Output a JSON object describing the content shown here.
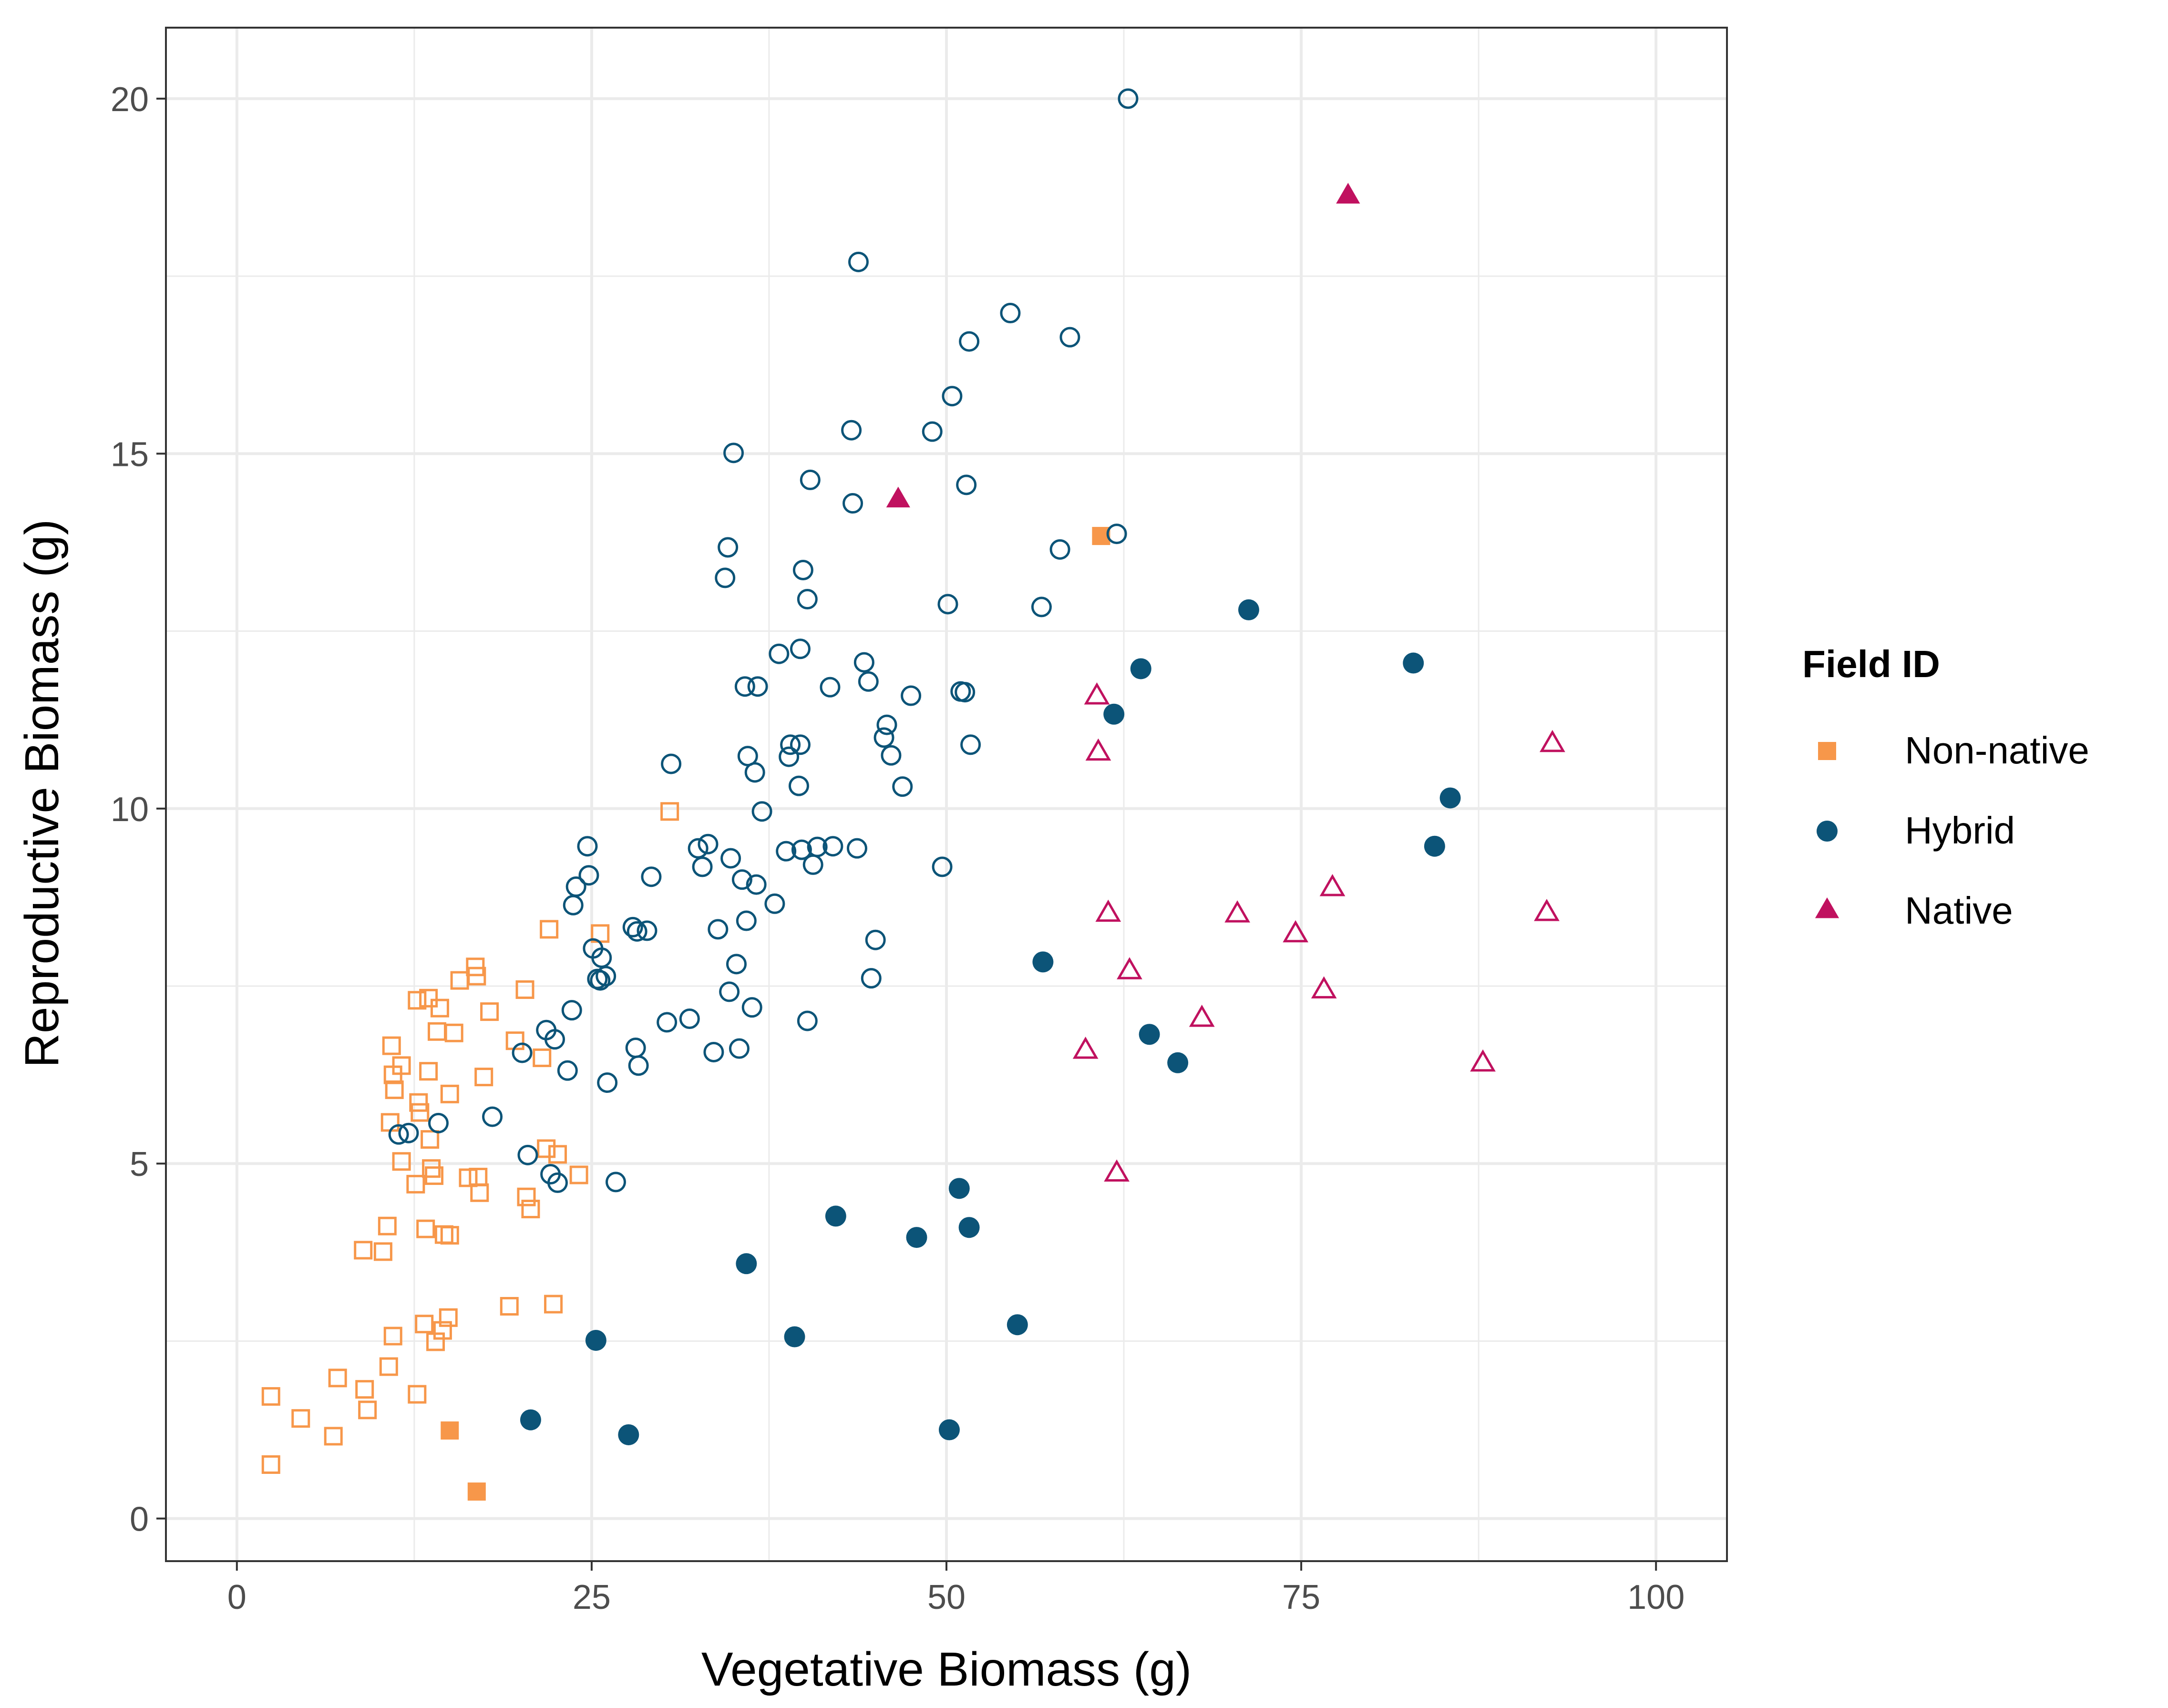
{
  "chart_data": {
    "type": "scatter",
    "xlabel": "Vegetative Biomass (g)",
    "ylabel": "Reproductive Biomass (g)",
    "xlim": [
      -5,
      105
    ],
    "ylim": [
      -0.6,
      21
    ],
    "x_ticks": [
      0,
      25,
      50,
      75,
      100
    ],
    "y_ticks": [
      0,
      5,
      10,
      15,
      20
    ],
    "x_tick_labels": [
      "0",
      "25",
      "50",
      "75",
      "100"
    ],
    "y_tick_labels": [
      "0",
      "5",
      "10",
      "15",
      "20"
    ],
    "grid": true,
    "legend": {
      "title": "Field ID",
      "position": "right",
      "entries": [
        {
          "label": "Non-native",
          "color": "#f7974a",
          "shape": "square"
        },
        {
          "label": "Hybrid",
          "color": "#0c5478",
          "shape": "circle"
        },
        {
          "label": "Native",
          "color": "#c0115f",
          "shape": "triangle"
        }
      ]
    },
    "series": [
      {
        "group": "Non-native",
        "filled": false,
        "shape": "square",
        "color": "#f7974a",
        "points": [
          [
            2.4,
            1.72
          ],
          [
            2.4,
            0.76
          ],
          [
            4.5,
            1.41
          ],
          [
            6.8,
            1.16
          ],
          [
            7.1,
            1.98
          ],
          [
            8.9,
            3.78
          ],
          [
            9.0,
            1.82
          ],
          [
            9.2,
            1.53
          ],
          [
            10.3,
            3.76
          ],
          [
            10.6,
            4.12
          ],
          [
            10.7,
            2.14
          ],
          [
            10.8,
            5.58
          ],
          [
            10.9,
            6.66
          ],
          [
            11.0,
            6.25
          ],
          [
            11.0,
            2.57
          ],
          [
            11.1,
            6.04
          ],
          [
            11.6,
            5.03
          ],
          [
            11.6,
            6.38
          ],
          [
            12.6,
            4.71
          ],
          [
            12.7,
            1.75
          ],
          [
            12.7,
            7.3
          ],
          [
            12.8,
            5.86
          ],
          [
            12.9,
            5.72
          ],
          [
            13.2,
            2.74
          ],
          [
            13.3,
            4.08
          ],
          [
            13.5,
            7.33
          ],
          [
            13.5,
            6.3
          ],
          [
            13.6,
            5.34
          ],
          [
            13.7,
            4.93
          ],
          [
            13.9,
            4.83
          ],
          [
            14.0,
            2.49
          ],
          [
            14.1,
            6.86
          ],
          [
            14.3,
            7.19
          ],
          [
            14.5,
            2.65
          ],
          [
            14.6,
            4.0
          ],
          [
            14.9,
            2.83
          ],
          [
            15.0,
            3.99
          ],
          [
            15.0,
            5.98
          ],
          [
            15.3,
            6.84
          ],
          [
            15.7,
            7.58
          ],
          [
            16.3,
            4.8
          ],
          [
            16.8,
            7.77
          ],
          [
            16.9,
            7.64
          ],
          [
            17.0,
            4.81
          ],
          [
            17.1,
            4.59
          ],
          [
            17.4,
            6.22
          ],
          [
            17.8,
            7.14
          ],
          [
            19.2,
            2.99
          ],
          [
            19.6,
            6.73
          ],
          [
            20.3,
            7.45
          ],
          [
            20.4,
            4.53
          ],
          [
            20.7,
            4.36
          ],
          [
            21.5,
            6.49
          ],
          [
            21.8,
            5.21
          ],
          [
            22.0,
            8.3
          ],
          [
            22.3,
            3.02
          ],
          [
            22.6,
            5.13
          ],
          [
            24.1,
            4.84
          ],
          [
            25.6,
            8.24
          ],
          [
            30.5,
            9.96
          ]
        ]
      },
      {
        "group": "Non-native",
        "filled": true,
        "shape": "square",
        "color": "#f7974a",
        "points": [
          [
            15.0,
            1.24
          ],
          [
            16.9,
            0.38
          ],
          [
            60.9,
            13.84
          ]
        ]
      },
      {
        "group": "Hybrid",
        "filled": false,
        "shape": "circle",
        "color": "#0c5478",
        "points": [
          [
            11.4,
            5.41
          ],
          [
            12.1,
            5.43
          ],
          [
            14.2,
            5.57
          ],
          [
            18.0,
            5.66
          ],
          [
            20.1,
            6.56
          ],
          [
            20.5,
            5.12
          ],
          [
            21.8,
            6.88
          ],
          [
            22.1,
            4.85
          ],
          [
            22.4,
            6.75
          ],
          [
            22.6,
            4.73
          ],
          [
            23.3,
            6.31
          ],
          [
            23.6,
            7.16
          ],
          [
            23.7,
            8.64
          ],
          [
            23.9,
            8.9
          ],
          [
            24.7,
            9.47
          ],
          [
            24.8,
            9.06
          ],
          [
            25.1,
            8.03
          ],
          [
            25.4,
            7.6
          ],
          [
            25.6,
            7.58
          ],
          [
            25.7,
            7.9
          ],
          [
            26.0,
            7.64
          ],
          [
            26.1,
            6.14
          ],
          [
            26.7,
            4.74
          ],
          [
            27.9,
            8.33
          ],
          [
            28.1,
            6.63
          ],
          [
            28.2,
            8.27
          ],
          [
            28.3,
            6.38
          ],
          [
            28.9,
            8.28
          ],
          [
            29.2,
            9.04
          ],
          [
            30.3,
            6.99
          ],
          [
            30.6,
            10.63
          ],
          [
            31.9,
            7.04
          ],
          [
            32.5,
            9.44
          ],
          [
            32.8,
            9.18
          ],
          [
            33.2,
            9.5
          ],
          [
            33.6,
            6.57
          ],
          [
            33.9,
            8.3
          ],
          [
            34.4,
            13.25
          ],
          [
            34.6,
            13.68
          ],
          [
            34.7,
            7.42
          ],
          [
            34.8,
            9.3
          ],
          [
            35.0,
            15.01
          ],
          [
            35.2,
            7.81
          ],
          [
            35.4,
            6.62
          ],
          [
            35.6,
            9.0
          ],
          [
            35.9,
            8.42
          ],
          [
            35.8,
            11.72
          ],
          [
            36.0,
            10.74
          ],
          [
            36.3,
            7.2
          ],
          [
            36.5,
            10.51
          ],
          [
            36.6,
            8.93
          ],
          [
            36.7,
            11.72
          ],
          [
            37.0,
            9.96
          ],
          [
            37.9,
            8.66
          ],
          [
            38.2,
            12.18
          ],
          [
            38.7,
            9.4
          ],
          [
            38.9,
            10.73
          ],
          [
            39.0,
            10.9
          ],
          [
            39.6,
            10.32
          ],
          [
            39.7,
            10.9
          ],
          [
            39.8,
            9.42
          ],
          [
            39.7,
            12.25
          ],
          [
            39.9,
            13.36
          ],
          [
            40.2,
            12.95
          ],
          [
            40.2,
            7.01
          ],
          [
            40.4,
            14.63
          ],
          [
            40.6,
            9.21
          ],
          [
            40.9,
            9.46
          ],
          [
            41.8,
            11.71
          ],
          [
            42.0,
            9.47
          ],
          [
            43.3,
            15.33
          ],
          [
            43.4,
            14.3
          ],
          [
            43.7,
            9.44
          ],
          [
            43.8,
            17.7
          ],
          [
            44.2,
            12.06
          ],
          [
            44.5,
            11.79
          ],
          [
            44.7,
            7.61
          ],
          [
            45.0,
            8.15
          ],
          [
            45.6,
            11.0
          ],
          [
            45.8,
            11.18
          ],
          [
            46.1,
            10.75
          ],
          [
            46.9,
            10.31
          ],
          [
            47.5,
            11.59
          ],
          [
            49.0,
            15.31
          ],
          [
            49.7,
            9.18
          ],
          [
            50.1,
            12.88
          ],
          [
            50.4,
            15.81
          ],
          [
            51.0,
            11.65
          ],
          [
            51.3,
            11.64
          ],
          [
            51.4,
            14.56
          ],
          [
            51.6,
            16.58
          ],
          [
            51.7,
            10.9
          ],
          [
            54.5,
            16.98
          ],
          [
            56.7,
            12.84
          ],
          [
            58.0,
            13.65
          ],
          [
            58.7,
            16.64
          ],
          [
            62.0,
            13.87
          ],
          [
            62.8,
            20.0
          ]
        ]
      },
      {
        "group": "Hybrid",
        "filled": true,
        "shape": "circle",
        "color": "#0c5478",
        "points": [
          [
            20.7,
            1.39
          ],
          [
            25.3,
            2.51
          ],
          [
            27.6,
            1.18
          ],
          [
            35.9,
            3.59
          ],
          [
            39.3,
            2.56
          ],
          [
            42.2,
            4.26
          ],
          [
            47.9,
            3.96
          ],
          [
            50.2,
            1.25
          ],
          [
            50.9,
            4.65
          ],
          [
            51.6,
            4.1
          ],
          [
            55.0,
            2.73
          ],
          [
            56.8,
            7.84
          ],
          [
            61.8,
            11.33
          ],
          [
            63.7,
            11.97
          ],
          [
            64.3,
            6.82
          ],
          [
            66.3,
            6.42
          ],
          [
            71.3,
            12.8
          ],
          [
            82.9,
            12.05
          ],
          [
            84.4,
            9.47
          ],
          [
            85.5,
            10.15
          ]
        ]
      },
      {
        "group": "Native",
        "filled": false,
        "shape": "triangle",
        "color": "#c0115f",
        "points": [
          [
            59.8,
            6.58
          ],
          [
            60.6,
            11.57
          ],
          [
            60.7,
            10.78
          ],
          [
            61.4,
            8.51
          ],
          [
            62.0,
            4.85
          ],
          [
            62.9,
            7.7
          ],
          [
            68.0,
            7.03
          ],
          [
            70.5,
            8.5
          ],
          [
            74.6,
            8.22
          ],
          [
            76.6,
            7.43
          ],
          [
            77.2,
            8.87
          ],
          [
            87.8,
            6.4
          ],
          [
            92.3,
            8.52
          ],
          [
            92.7,
            10.9
          ]
        ]
      },
      {
        "group": "Native",
        "filled": true,
        "shape": "triangle",
        "color": "#c0115f",
        "points": [
          [
            46.6,
            14.34
          ],
          [
            78.3,
            18.62
          ]
        ]
      }
    ]
  }
}
